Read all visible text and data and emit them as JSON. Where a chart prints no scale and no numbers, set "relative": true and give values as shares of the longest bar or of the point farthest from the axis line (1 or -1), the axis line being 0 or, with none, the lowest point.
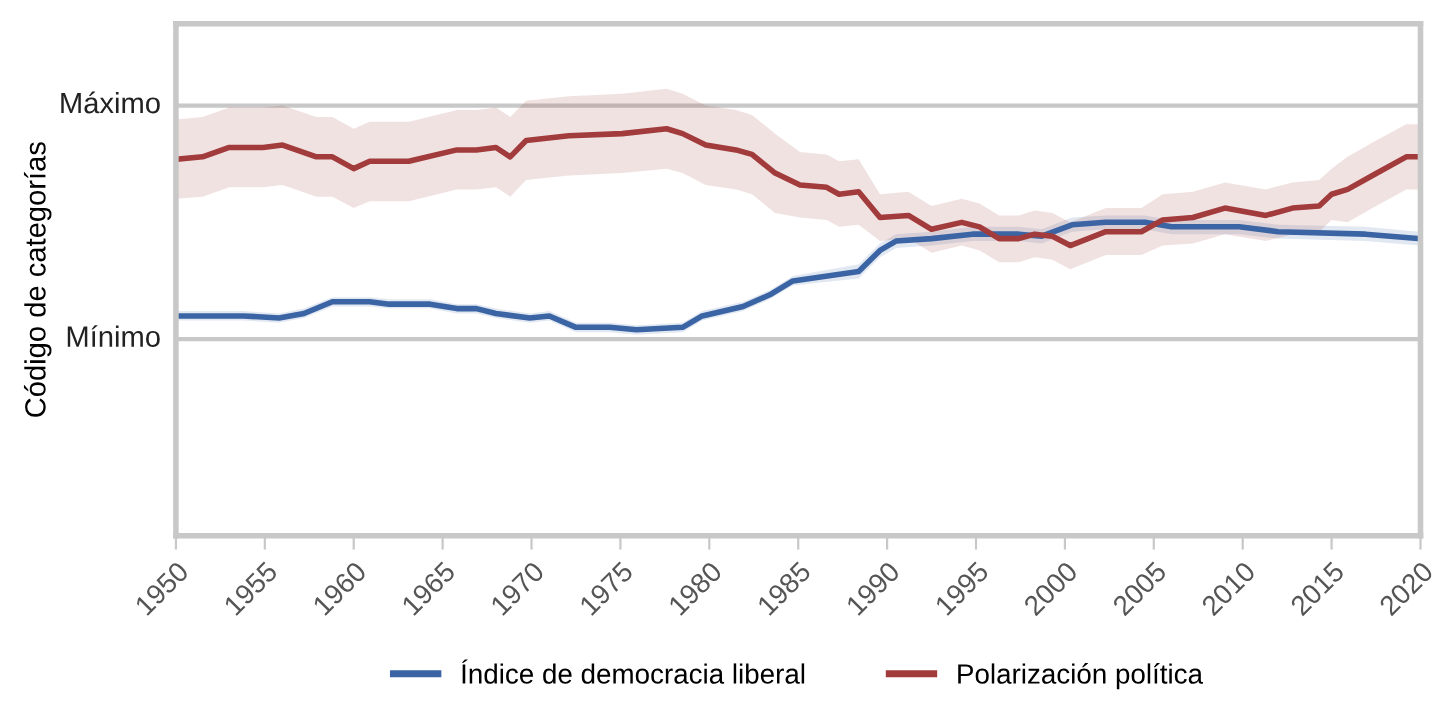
{
  "chart_data": {
    "type": "line",
    "ylabel": "Código de categorías",
    "relative": true,
    "xlim": [
      1950,
      2020
    ],
    "xticks": [
      1950,
      1955,
      1960,
      1965,
      1970,
      1975,
      1980,
      1985,
      1990,
      1995,
      2000,
      2005,
      2010,
      2015,
      2020
    ],
    "ref_lines": [
      {
        "axis": "y",
        "value": 0.483,
        "label": "Mínimo",
        "color": "#c8c8c8"
      },
      {
        "axis": "y",
        "value": 1.057,
        "label": "Máximo",
        "color": "#c8c8c8"
      }
    ],
    "legend": "bottom",
    "marker": "none",
    "line_style": "solid",
    "series": [
      {
        "name": "Índice de democracia liberal",
        "color": "#3a64a4",
        "x": [
          1950,
          1951.9,
          1953.8,
          1955.8,
          1957.2,
          1958.8,
          1960.9,
          1962,
          1964.3,
          1965.8,
          1966.9,
          1968,
          1969.9,
          1971,
          1972.5,
          1974.4,
          1975.9,
          1978.5,
          1979.6,
          1981.9,
          1983.4,
          1984.7,
          1988.4,
          1989.6,
          1990.5,
          1992.5,
          1994.8,
          1997.4,
          1998.7,
          2000.4,
          2002.3,
          2004.5,
          2006,
          2009.8,
          2012,
          2016.9,
          2019.9
        ],
        "values": [
          0.54,
          0.54,
          0.54,
          0.535,
          0.546,
          0.575,
          0.575,
          0.569,
          0.569,
          0.558,
          0.558,
          0.546,
          0.535,
          0.54,
          0.512,
          0.512,
          0.506,
          0.512,
          0.54,
          0.563,
          0.592,
          0.626,
          0.649,
          0.701,
          0.724,
          0.73,
          0.741,
          0.741,
          0.736,
          0.764,
          0.77,
          0.77,
          0.759,
          0.759,
          0.747,
          0.741,
          0.73
        ],
        "lower": [
          0.529,
          0.529,
          0.529,
          0.523,
          0.535,
          0.563,
          0.563,
          0.558,
          0.558,
          0.546,
          0.546,
          0.535,
          0.523,
          0.529,
          0.5,
          0.5,
          0.494,
          0.5,
          0.529,
          0.552,
          0.581,
          0.615,
          0.632,
          0.684,
          0.707,
          0.713,
          0.724,
          0.724,
          0.718,
          0.747,
          0.753,
          0.753,
          0.741,
          0.741,
          0.73,
          0.724,
          0.713
        ],
        "upper": [
          0.552,
          0.552,
          0.552,
          0.546,
          0.558,
          0.586,
          0.586,
          0.581,
          0.581,
          0.569,
          0.569,
          0.558,
          0.546,
          0.552,
          0.523,
          0.523,
          0.517,
          0.523,
          0.552,
          0.575,
          0.603,
          0.638,
          0.667,
          0.718,
          0.741,
          0.747,
          0.759,
          0.759,
          0.753,
          0.782,
          0.787,
          0.787,
          0.776,
          0.776,
          0.764,
          0.759,
          0.747
        ]
      },
      {
        "name": "Polarización política",
        "color": "#a23b3b",
        "x": [
          1950,
          1951.5,
          1953,
          1954.9,
          1956,
          1957.9,
          1958.8,
          1960,
          1960.9,
          1963.1,
          1965.8,
          1966.9,
          1968,
          1968.8,
          1969.7,
          1972.1,
          1975.1,
          1977.6,
          1978.5,
          1979.8,
          1981.5,
          1982.4,
          1983.7,
          1985.1,
          1986.6,
          1987.3,
          1988.4,
          1989.6,
          1991.2,
          1992.5,
          1994.2,
          1995.2,
          1996.3,
          1997.4,
          1998.3,
          1999.3,
          2000.3,
          2002.3,
          2004.3,
          2005.5,
          2007.2,
          2009,
          2011.3,
          2012.8,
          2014.3,
          2015,
          2015.9,
          2017.3,
          2019.2,
          2019.9
        ],
        "values": [
          0.925,
          0.931,
          0.954,
          0.954,
          0.96,
          0.931,
          0.931,
          0.902,
          0.92,
          0.92,
          0.948,
          0.948,
          0.954,
          0.931,
          0.971,
          0.983,
          0.988,
          1.0,
          0.988,
          0.96,
          0.948,
          0.937,
          0.891,
          0.862,
          0.856,
          0.839,
          0.845,
          0.782,
          0.787,
          0.753,
          0.77,
          0.759,
          0.73,
          0.73,
          0.741,
          0.736,
          0.713,
          0.747,
          0.747,
          0.776,
          0.782,
          0.805,
          0.787,
          0.805,
          0.81,
          0.839,
          0.851,
          0.885,
          0.931,
          0.931
        ],
        "lower": [
          0.828,
          0.833,
          0.856,
          0.856,
          0.862,
          0.833,
          0.833,
          0.805,
          0.822,
          0.822,
          0.851,
          0.851,
          0.856,
          0.833,
          0.874,
          0.885,
          0.891,
          0.902,
          0.891,
          0.862,
          0.851,
          0.839,
          0.793,
          0.782,
          0.776,
          0.759,
          0.764,
          0.724,
          0.73,
          0.695,
          0.713,
          0.701,
          0.672,
          0.672,
          0.684,
          0.678,
          0.655,
          0.69,
          0.69,
          0.713,
          0.718,
          0.741,
          0.724,
          0.741,
          0.747,
          0.776,
          0.77,
          0.805,
          0.851,
          0.851
        ],
        "upper": [
          1.023,
          1.029,
          1.052,
          1.052,
          1.057,
          1.029,
          1.029,
          1.0,
          1.017,
          1.017,
          1.046,
          1.046,
          1.052,
          1.029,
          1.069,
          1.08,
          1.086,
          1.098,
          1.086,
          1.057,
          1.046,
          1.034,
          0.988,
          0.943,
          0.937,
          0.92,
          0.925,
          0.839,
          0.845,
          0.81,
          0.828,
          0.816,
          0.787,
          0.787,
          0.799,
          0.793,
          0.77,
          0.805,
          0.805,
          0.839,
          0.845,
          0.868,
          0.851,
          0.868,
          0.874,
          0.902,
          0.931,
          0.966,
          1.011,
          1.011
        ]
      }
    ]
  }
}
